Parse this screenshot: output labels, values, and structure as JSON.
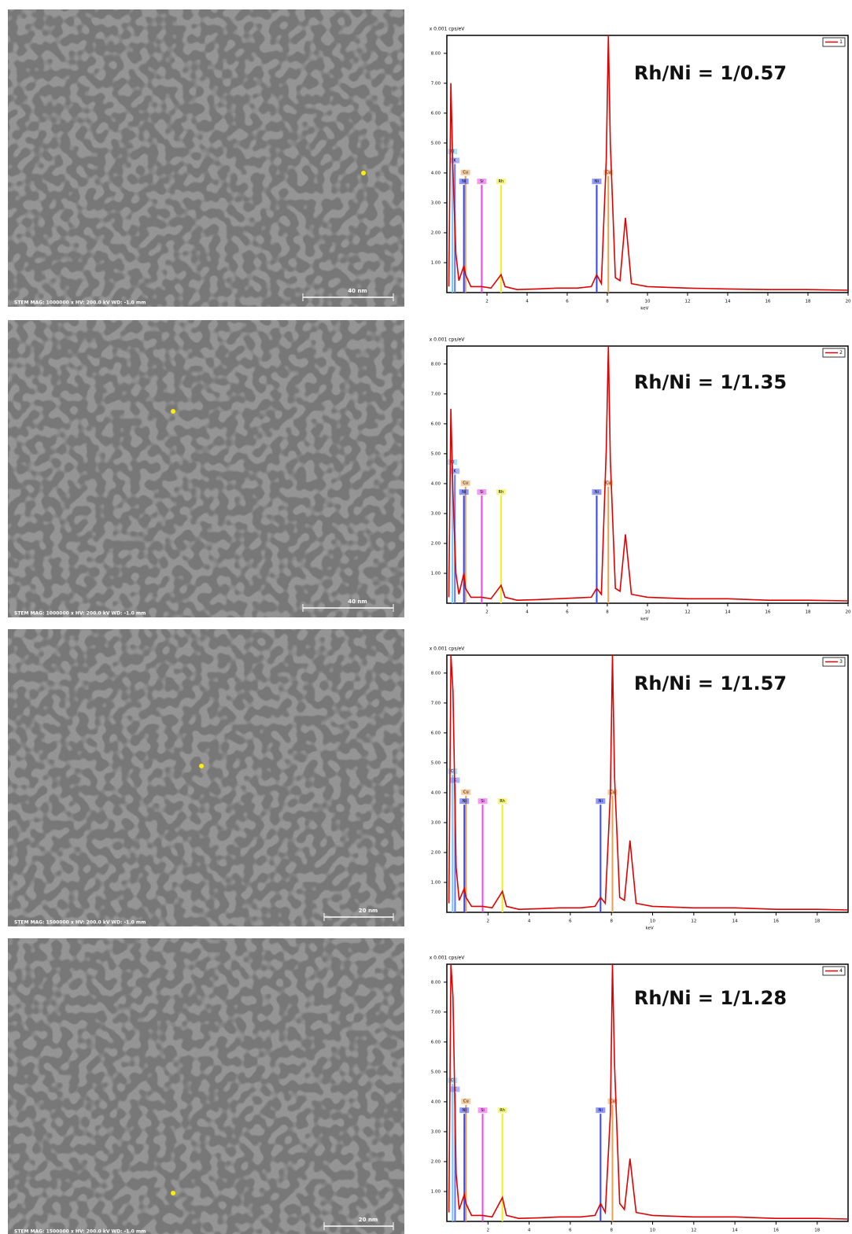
{
  "chart_data": [
    {
      "type": "line",
      "title": "Rh/Ni = 1/0.57",
      "ylabel": "x 0.001 cps/eV",
      "xlabel": "keV",
      "xlim": [
        0,
        20
      ],
      "xticks": [
        2,
        4,
        6,
        8,
        10,
        12,
        14,
        16,
        18,
        20
      ],
      "ylim": [
        0,
        8.6
      ],
      "yticks": [
        {
          "value": 1,
          "label": "1.00"
        },
        {
          "value": 2,
          "label": "2.00"
        },
        {
          "value": 3,
          "label": "3.00"
        },
        {
          "value": 4,
          "label": "4.00"
        },
        {
          "value": 5,
          "label": "5.00"
        },
        {
          "value": 6,
          "label": "6.00"
        },
        {
          "value": 7,
          "label": "7.00"
        },
        {
          "value": 8,
          "label": "8.00"
        }
      ],
      "series": [
        {
          "name": "1",
          "color": "#e00000",
          "x": [
            0.1,
            0.2,
            0.3,
            0.45,
            0.6,
            0.85,
            0.93,
            1.2,
            1.74,
            2.2,
            2.7,
            2.9,
            3.5,
            4.5,
            5.5,
            6.5,
            7.2,
            7.47,
            7.7,
            7.95,
            8.05,
            8.15,
            8.4,
            8.63,
            8.9,
            9.2,
            10,
            12,
            14,
            16,
            18,
            20
          ],
          "values": [
            0.2,
            7.0,
            4.2,
            1.3,
            0.4,
            0.9,
            0.6,
            0.2,
            0.2,
            0.15,
            0.6,
            0.2,
            0.1,
            0.12,
            0.15,
            0.15,
            0.2,
            0.6,
            0.3,
            4.5,
            8.6,
            5.0,
            0.5,
            0.4,
            2.5,
            0.3,
            0.2,
            0.15,
            0.12,
            0.1,
            0.1,
            0.08
          ]
        }
      ],
      "markers": [
        {
          "label": "Cl",
          "x": 0.28,
          "value": 4.6,
          "color": "#66ccff"
        },
        {
          "label": "K",
          "x": 0.4,
          "value": 4.3,
          "color": "#6677ff"
        },
        {
          "label": "Cu",
          "x": 0.93,
          "value": 3.9,
          "color": "#e8a050"
        },
        {
          "label": "Ni",
          "x": 0.85,
          "value": 3.6,
          "color": "#3344ff"
        },
        {
          "label": "Si",
          "x": 1.74,
          "value": 3.6,
          "color": "#ee44ee"
        },
        {
          "label": "Rh",
          "x": 2.7,
          "value": 3.6,
          "color": "#eeee22"
        },
        {
          "label": "Ni",
          "x": 7.47,
          "value": 3.6,
          "color": "#3344ff"
        },
        {
          "label": "Cu",
          "x": 8.05,
          "value": 3.9,
          "color": "#e8a050"
        }
      ]
    },
    {
      "type": "line",
      "title": "Rh/Ni = 1/1.35",
      "ylabel": "x 0.001 cps/eV",
      "xlabel": "keV",
      "xlim": [
        0,
        20
      ],
      "xticks": [
        2,
        4,
        6,
        8,
        10,
        12,
        14,
        16,
        18,
        20
      ],
      "ylim": [
        0,
        8.6
      ],
      "yticks": [
        {
          "value": 1,
          "label": "1.00"
        },
        {
          "value": 2,
          "label": "2.00"
        },
        {
          "value": 3,
          "label": "3.00"
        },
        {
          "value": 4,
          "label": "4.00"
        },
        {
          "value": 5,
          "label": "5.00"
        },
        {
          "value": 6,
          "label": "6.00"
        },
        {
          "value": 7,
          "label": "7.00"
        },
        {
          "value": 8,
          "label": "8.00"
        }
      ],
      "series": [
        {
          "name": "2",
          "color": "#e00000",
          "x": [
            0.1,
            0.2,
            0.3,
            0.45,
            0.6,
            0.85,
            0.93,
            1.2,
            1.74,
            2.2,
            2.7,
            2.9,
            3.5,
            4.5,
            5.5,
            6.5,
            7.2,
            7.47,
            7.7,
            7.95,
            8.05,
            8.15,
            8.4,
            8.63,
            8.9,
            9.2,
            10,
            12,
            14,
            16,
            18,
            20
          ],
          "values": [
            0.2,
            6.5,
            3.8,
            1.0,
            0.3,
            1.0,
            0.5,
            0.2,
            0.2,
            0.15,
            0.6,
            0.2,
            0.1,
            0.12,
            0.15,
            0.18,
            0.2,
            0.5,
            0.3,
            5.2,
            8.6,
            4.8,
            0.5,
            0.4,
            2.3,
            0.3,
            0.2,
            0.15,
            0.15,
            0.1,
            0.1,
            0.08
          ]
        }
      ],
      "markers": [
        {
          "label": "Cl",
          "x": 0.28,
          "value": 4.6,
          "color": "#66ccff"
        },
        {
          "label": "K",
          "x": 0.4,
          "value": 4.3,
          "color": "#6677ff"
        },
        {
          "label": "Cu",
          "x": 0.93,
          "value": 3.9,
          "color": "#e8a050"
        },
        {
          "label": "Ni",
          "x": 0.85,
          "value": 3.6,
          "color": "#3344ff"
        },
        {
          "label": "Si",
          "x": 1.74,
          "value": 3.6,
          "color": "#ee44ee"
        },
        {
          "label": "Rh",
          "x": 2.7,
          "value": 3.6,
          "color": "#eeee22"
        },
        {
          "label": "Ni",
          "x": 7.47,
          "value": 3.6,
          "color": "#3344ff"
        },
        {
          "label": "Cu",
          "x": 8.05,
          "value": 3.9,
          "color": "#e8a050"
        }
      ]
    },
    {
      "type": "line",
      "title": "Rh/Ni = 1/1.57",
      "ylabel": "x 0.001 cps/eV",
      "xlabel": "keV",
      "xlim": [
        0,
        19.5
      ],
      "xticks": [
        2,
        4,
        6,
        8,
        10,
        12,
        14,
        16,
        18
      ],
      "ylim": [
        0,
        8.6
      ],
      "yticks": [
        {
          "value": 1,
          "label": "1.00"
        },
        {
          "value": 2,
          "label": "2.00"
        },
        {
          "value": 3,
          "label": "3.00"
        },
        {
          "value": 4,
          "label": "4.00"
        },
        {
          "value": 5,
          "label": "5.00"
        },
        {
          "value": 6,
          "label": "6.00"
        },
        {
          "value": 7,
          "label": "7.00"
        },
        {
          "value": 8,
          "label": "8.00"
        }
      ],
      "series": [
        {
          "name": "3",
          "color": "#e00000",
          "x": [
            0.1,
            0.2,
            0.3,
            0.45,
            0.6,
            0.85,
            0.93,
            1.2,
            1.74,
            2.2,
            2.7,
            2.9,
            3.5,
            4.5,
            5.5,
            6.5,
            7.2,
            7.47,
            7.7,
            7.95,
            8.05,
            8.15,
            8.4,
            8.63,
            8.9,
            9.2,
            10,
            12,
            14,
            16,
            18,
            19.5
          ],
          "values": [
            0.3,
            8.6,
            7.4,
            1.5,
            0.4,
            0.8,
            0.5,
            0.2,
            0.2,
            0.15,
            0.7,
            0.2,
            0.1,
            0.12,
            0.15,
            0.15,
            0.2,
            0.5,
            0.3,
            4.0,
            8.6,
            4.5,
            0.5,
            0.4,
            2.4,
            0.3,
            0.2,
            0.15,
            0.15,
            0.1,
            0.1,
            0.08
          ]
        }
      ],
      "markers": [
        {
          "label": "Cl",
          "x": 0.28,
          "value": 4.6,
          "color": "#66ccff"
        },
        {
          "label": "K",
          "x": 0.4,
          "value": 4.3,
          "color": "#6677ff"
        },
        {
          "label": "Cu",
          "x": 0.93,
          "value": 3.9,
          "color": "#e8a050"
        },
        {
          "label": "Ni",
          "x": 0.85,
          "value": 3.6,
          "color": "#3344ff"
        },
        {
          "label": "Si",
          "x": 1.74,
          "value": 3.6,
          "color": "#ee44ee"
        },
        {
          "label": "Rh",
          "x": 2.7,
          "value": 3.6,
          "color": "#eeee22"
        },
        {
          "label": "Ni",
          "x": 7.47,
          "value": 3.6,
          "color": "#3344ff"
        },
        {
          "label": "Cu",
          "x": 8.05,
          "value": 3.9,
          "color": "#e8a050"
        }
      ]
    },
    {
      "type": "line",
      "title": "Rh/Ni = 1/1.28",
      "ylabel": "x 0.001 cps/eV",
      "xlabel": "keV",
      "xlim": [
        0,
        19.5
      ],
      "xticks": [
        2,
        4,
        6,
        8,
        10,
        12,
        14,
        16,
        18
      ],
      "ylim": [
        0,
        8.6
      ],
      "yticks": [
        {
          "value": 1,
          "label": "1.00"
        },
        {
          "value": 2,
          "label": "2.00"
        },
        {
          "value": 3,
          "label": "3.00"
        },
        {
          "value": 4,
          "label": "4.00"
        },
        {
          "value": 5,
          "label": "5.00"
        },
        {
          "value": 6,
          "label": "6.00"
        },
        {
          "value": 7,
          "label": "7.00"
        },
        {
          "value": 8,
          "label": "8.00"
        }
      ],
      "series": [
        {
          "name": "4",
          "color": "#e00000",
          "x": [
            0.1,
            0.2,
            0.3,
            0.45,
            0.6,
            0.85,
            0.93,
            1.2,
            1.74,
            2.2,
            2.7,
            2.9,
            3.5,
            4.5,
            5.5,
            6.5,
            7.2,
            7.47,
            7.7,
            7.95,
            8.05,
            8.15,
            8.4,
            8.63,
            8.9,
            9.2,
            10,
            12,
            14,
            16,
            18,
            19.5
          ],
          "values": [
            0.3,
            8.6,
            7.5,
            1.6,
            0.4,
            0.9,
            0.6,
            0.2,
            0.2,
            0.15,
            0.8,
            0.2,
            0.1,
            0.12,
            0.15,
            0.15,
            0.2,
            0.6,
            0.3,
            3.6,
            8.6,
            5.2,
            0.6,
            0.4,
            2.1,
            0.3,
            0.2,
            0.15,
            0.15,
            0.1,
            0.1,
            0.08
          ]
        }
      ],
      "markers": [
        {
          "label": "Cl",
          "x": 0.28,
          "value": 4.6,
          "color": "#66ccff"
        },
        {
          "label": "K",
          "x": 0.4,
          "value": 4.3,
          "color": "#6677ff"
        },
        {
          "label": "Cu",
          "x": 0.93,
          "value": 3.9,
          "color": "#e8a050"
        },
        {
          "label": "Ni",
          "x": 0.85,
          "value": 3.6,
          "color": "#3344ff"
        },
        {
          "label": "Si",
          "x": 1.74,
          "value": 3.6,
          "color": "#ee44ee"
        },
        {
          "label": "Rh",
          "x": 2.7,
          "value": 3.6,
          "color": "#eeee22"
        },
        {
          "label": "Ni",
          "x": 7.47,
          "value": 3.6,
          "color": "#3344ff"
        },
        {
          "label": "Cu",
          "x": 8.05,
          "value": 3.9,
          "color": "#e8a050"
        }
      ]
    }
  ],
  "micrographs": [
    {
      "caption": "STEM  MAG: 1000000 x   HV: 200.0 kV   WD: -1.0 mm",
      "scale": "40 nm"
    },
    {
      "caption": "STEM  MAG: 1000000 x   HV: 200.0 kV   WD: -1.0 mm",
      "scale": "40 nm"
    },
    {
      "caption": "STEM  MAG: 1500000 x   HV: 200.0 kV   WD: -1.0 mm",
      "scale": "20 nm"
    },
    {
      "caption": "STEM  MAG: 1500000 x   HV: 200.0 kV   WD: -1.0 mm",
      "scale": "20 nm"
    }
  ]
}
